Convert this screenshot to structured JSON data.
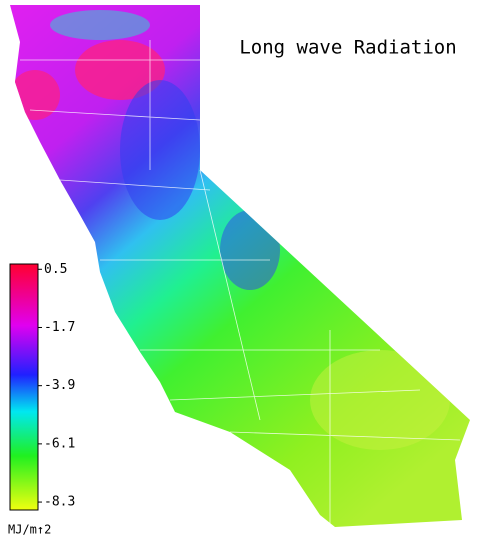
{
  "title": "Long wave Radiation",
  "colorbar": {
    "lim": [
      -8.6,
      0.7
    ],
    "ticks": [
      0.5,
      -1.7,
      -3.9,
      -6.1,
      -8.3
    ],
    "unit": "MJ/m↑2"
  }
}
